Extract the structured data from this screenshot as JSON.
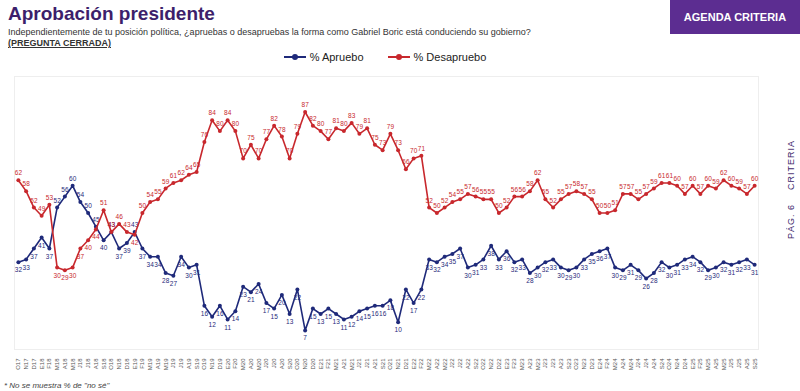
{
  "chart_data": {
    "type": "line",
    "title": "Aprobación presidente",
    "subtitle": "Independientemente de tu posición política, ¿apruebas o desapruebas la forma como Gabriel Boric está conduciendo su gobierno?",
    "annotations": {
      "question": "(PREGUNTA CERRADA)",
      "badge": "AGENDA CRITERIA",
      "page": "PÁG. 6",
      "brand": "CRITERIA",
      "footnote": "* No se muestra % de \"no sé\""
    },
    "categories": [
      "O17",
      "N17",
      "D17",
      "E18",
      "F18",
      "M18",
      "A18",
      "M18",
      "J18",
      "J18",
      "A18",
      "S18",
      "O18",
      "N18",
      "D18",
      "E19",
      "F19",
      "M19",
      "A19",
      "M19",
      "J19",
      "J19",
      "A19",
      "S19",
      "O19",
      "N19",
      "D19",
      "E20",
      "F20",
      "M20",
      "A20",
      "M20",
      "J20",
      "J20",
      "A20",
      "S20",
      "O20",
      "N20",
      "D20",
      "E21",
      "F21",
      "M21",
      "A21",
      "M21",
      "J21",
      "J21",
      "A21",
      "S21",
      "O21",
      "N21",
      "D21",
      "E22",
      "F22",
      "M22",
      "A22",
      "M22",
      "J22",
      "J22",
      "A22",
      "S22",
      "O22",
      "N22",
      "D22",
      "E23",
      "F23",
      "M23",
      "A23",
      "M23",
      "J23",
      "J23",
      "A23",
      "S23",
      "O23",
      "N23",
      "D23",
      "E24",
      "F24",
      "M24",
      "A24",
      "M24",
      "J24",
      "J24",
      "A24",
      "S24",
      "O24",
      "N24",
      "D24",
      "E25",
      "F25",
      "M25",
      "A25",
      "M25",
      "J25",
      "J25",
      "A25",
      "S25"
    ],
    "series": [
      {
        "name": "% Apruebo",
        "color": "#1f2a7a",
        "marker": "circle",
        "line_style": "solid",
        "values": [
          32,
          33,
          37,
          41,
          37,
          52,
          56,
          60,
          54,
          50,
          45,
          40,
          43,
          37,
          39,
          43,
          37,
          34,
          34,
          28,
          27,
          34,
          30,
          31,
          16,
          12,
          16,
          11,
          14,
          23,
          21,
          24,
          17,
          15,
          20,
          13,
          22,
          7,
          15,
          13,
          15,
          13,
          11,
          12,
          14,
          15,
          16,
          16,
          18,
          10,
          22,
          17,
          22,
          33,
          32,
          34,
          35,
          37,
          30,
          31,
          33,
          38,
          33,
          36,
          32,
          33,
          28,
          30,
          32,
          33,
          30,
          29,
          30,
          33,
          35,
          36,
          37,
          30,
          29,
          31,
          29,
          26,
          28,
          32,
          30,
          31,
          33,
          34,
          32,
          29,
          30,
          32,
          31,
          32,
          33,
          31
        ]
      },
      {
        "name": "% Desapruebo",
        "color": "#c8282d",
        "marker": "circle",
        "line_style": "solid",
        "values": [
          62,
          58,
          52,
          49,
          53,
          30,
          29,
          30,
          37,
          40,
          44,
          51,
          43,
          46,
          43,
          42,
          50,
          54,
          55,
          59,
          61,
          62,
          64,
          65,
          76,
          84,
          80,
          84,
          80,
          70,
          75,
          70,
          77,
          82,
          78,
          70,
          79,
          87,
          82,
          80,
          77,
          81,
          80,
          83,
          79,
          81,
          75,
          73,
          79,
          73,
          66,
          70,
          71,
          52,
          50,
          52,
          54,
          55,
          57,
          56,
          55,
          55,
          50,
          52,
          56,
          56,
          58,
          62,
          55,
          52,
          55,
          57,
          58,
          57,
          55,
          50,
          50,
          51,
          57,
          57,
          55,
          57,
          59,
          61,
          61,
          60,
          57,
          60,
          57,
          60,
          59,
          62,
          60,
          59,
          57,
          60
        ]
      }
    ],
    "ylim": [
      0,
      100
    ],
    "yticks": [],
    "grid": false,
    "legend": "top",
    "data_labels": true,
    "tick_labels": "x"
  }
}
